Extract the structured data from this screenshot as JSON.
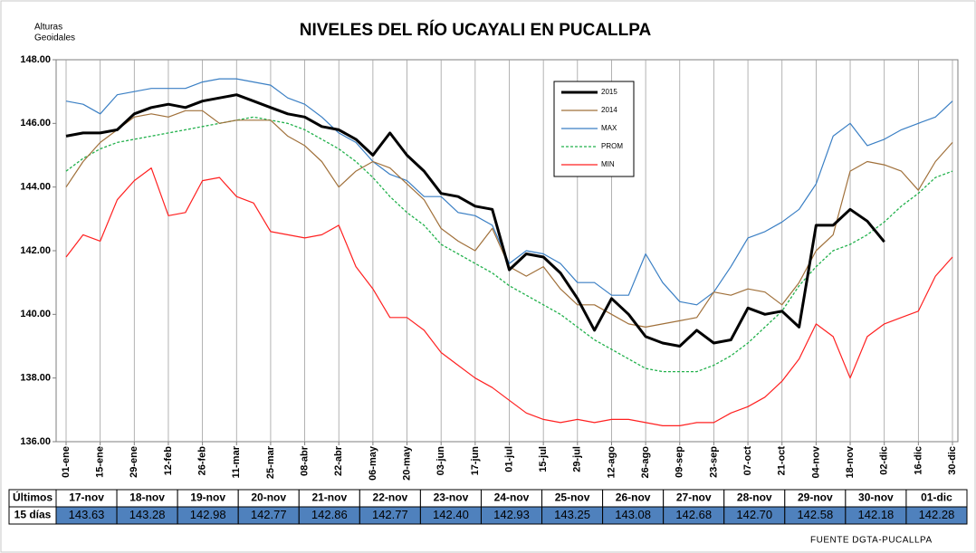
{
  "chart_data": {
    "type": "line",
    "title": "NIVELES DEL RÍO UCAYALI EN PUCALLPA",
    "ylabel": [
      "Alturas",
      "Geoidales"
    ],
    "ylim": [
      136,
      148
    ],
    "yticks": [
      {
        "value": 136,
        "label": "136.00"
      },
      {
        "value": 138,
        "label": "138.00"
      },
      {
        "value": 140,
        "label": "140.00"
      },
      {
        "value": 142,
        "label": "142.00"
      },
      {
        "value": 144,
        "label": "144.00"
      },
      {
        "value": 146,
        "label": "146.00"
      },
      {
        "value": 148,
        "label": "148.00"
      }
    ],
    "grid": "x",
    "categories": [
      "01-ene",
      null,
      "15-ene",
      null,
      "29-ene",
      null,
      "12-feb",
      null,
      "26-feb",
      null,
      "11-mar",
      null,
      "25-mar",
      null,
      "08-abr",
      null,
      "22-abr",
      null,
      "06-may",
      null,
      "20-may",
      null,
      "03-jun",
      null,
      "17-jun",
      null,
      "01-jul",
      null,
      "15-jul",
      null,
      "29-jul",
      null,
      "12-ago",
      null,
      "26-ago",
      null,
      "09-sep",
      null,
      "23-sep",
      null,
      "07-oct",
      null,
      "21-oct",
      null,
      "04-nov",
      null,
      "18-nov",
      null,
      "02-dic",
      null,
      "16-dic",
      null,
      "30-dic"
    ],
    "series": [
      {
        "name": "2015",
        "color": "#000000",
        "style": "thick",
        "values": [
          145.6,
          145.7,
          145.7,
          145.8,
          146.3,
          146.5,
          146.6,
          146.5,
          146.7,
          146.8,
          146.9,
          146.7,
          146.5,
          146.3,
          146.2,
          145.9,
          145.8,
          145.5,
          145.0,
          145.7,
          145.0,
          144.5,
          143.8,
          143.7,
          143.4,
          143.3,
          141.4,
          141.9,
          141.8,
          141.3,
          140.5,
          139.5,
          140.5,
          140.0,
          139.3,
          139.1,
          139.0,
          139.5,
          139.1,
          139.2,
          140.2,
          140.0,
          140.1,
          139.6,
          142.8,
          142.8,
          143.3,
          142.93,
          142.28,
          null,
          null,
          null,
          null
        ]
      },
      {
        "name": "2014",
        "color": "#a0703a",
        "values": [
          144.0,
          144.8,
          145.4,
          145.8,
          146.2,
          146.3,
          146.2,
          146.4,
          146.4,
          146.0,
          146.1,
          146.1,
          146.1,
          145.6,
          145.3,
          144.8,
          144.0,
          144.5,
          144.8,
          144.6,
          144.1,
          143.6,
          142.7,
          142.3,
          142.0,
          142.7,
          141.5,
          141.2,
          141.5,
          140.8,
          140.3,
          140.3,
          140.0,
          139.7,
          139.6,
          139.7,
          139.8,
          139.9,
          140.7,
          140.6,
          140.8,
          140.7,
          140.3,
          141.0,
          142.0,
          142.5,
          144.5,
          144.8,
          144.7,
          144.5,
          143.9,
          144.8,
          145.4
        ]
      },
      {
        "name": "MAX",
        "color": "#3a7fc4",
        "values": [
          146.7,
          146.6,
          146.3,
          146.9,
          147.0,
          147.1,
          147.1,
          147.1,
          147.3,
          147.4,
          147.4,
          147.3,
          147.2,
          146.8,
          146.6,
          146.2,
          145.7,
          145.4,
          144.8,
          144.4,
          144.2,
          143.7,
          143.7,
          143.2,
          143.1,
          142.8,
          141.6,
          142.0,
          141.9,
          141.6,
          141.0,
          141.0,
          140.6,
          140.6,
          141.9,
          141.0,
          140.4,
          140.3,
          140.7,
          141.5,
          142.4,
          142.6,
          142.9,
          143.3,
          144.1,
          145.6,
          146.0,
          145.3,
          145.5,
          145.8,
          146.0,
          146.2,
          146.7
        ]
      },
      {
        "name": "PROM",
        "color": "#22b14c",
        "style": "dashed",
        "values": [
          144.5,
          144.9,
          145.2,
          145.4,
          145.5,
          145.6,
          145.7,
          145.8,
          145.9,
          146.0,
          146.1,
          146.2,
          146.1,
          146.0,
          145.8,
          145.5,
          145.2,
          144.8,
          144.3,
          143.7,
          143.2,
          142.8,
          142.2,
          141.9,
          141.6,
          141.3,
          140.9,
          140.6,
          140.3,
          140.0,
          139.6,
          139.2,
          138.9,
          138.6,
          138.3,
          138.2,
          138.2,
          138.2,
          138.4,
          138.7,
          139.1,
          139.6,
          140.1,
          140.9,
          141.5,
          142.0,
          142.2,
          142.5,
          142.9,
          143.4,
          143.8,
          144.3,
          144.5
        ]
      },
      {
        "name": "MIN",
        "color": "#ff2020",
        "values": [
          141.8,
          142.5,
          142.3,
          143.6,
          144.2,
          144.6,
          143.1,
          143.2,
          144.2,
          144.3,
          143.7,
          143.5,
          142.6,
          142.5,
          142.4,
          142.5,
          142.8,
          141.5,
          140.8,
          139.9,
          139.9,
          139.5,
          138.8,
          138.4,
          138.0,
          137.7,
          137.3,
          136.9,
          136.7,
          136.6,
          136.7,
          136.6,
          136.7,
          136.7,
          136.6,
          136.5,
          136.5,
          136.6,
          136.6,
          136.9,
          137.1,
          137.4,
          137.9,
          138.6,
          139.7,
          139.3,
          138.0,
          139.3,
          139.7,
          139.9,
          140.1,
          141.2,
          141.8
        ]
      }
    ]
  },
  "table": {
    "header": [
      "Últimos",
      "15 días"
    ],
    "dates": [
      "17-nov",
      "18-nov",
      "19-nov",
      "20-nov",
      "21-nov",
      "22-nov",
      "23-nov",
      "24-nov",
      "25-nov",
      "26-nov",
      "27-nov",
      "28-nov",
      "29-nov",
      "30-nov",
      "01-dic"
    ],
    "values": [
      "143.63",
      "143.28",
      "142.98",
      "142.77",
      "142.86",
      "142.77",
      "142.40",
      "142.93",
      "143.25",
      "143.08",
      "142.68",
      "142.70",
      "142.58",
      "142.18",
      "142.28"
    ]
  },
  "source": "FUENTE DGTA-PUCALLPA"
}
